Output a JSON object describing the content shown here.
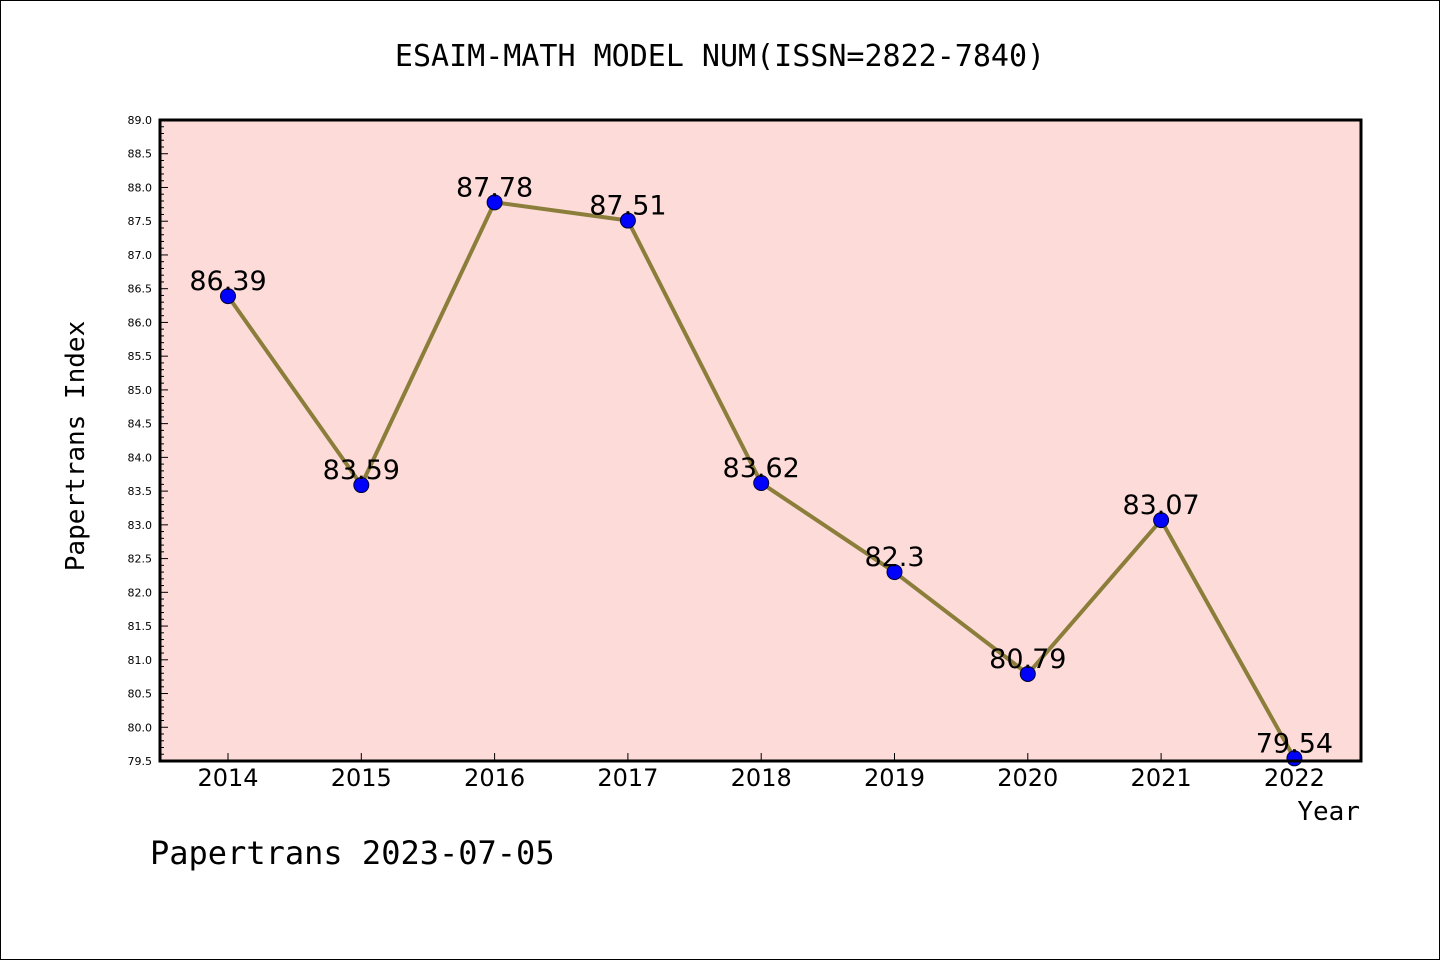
{
  "chart_data": {
    "type": "line",
    "title": "ESAIM-MATH MODEL NUM(ISSN=2822-7840)",
    "xlabel": "Year",
    "ylabel": "Papertrans Index",
    "footer": "Papertrans 2023-07-05",
    "categories": [
      "2014",
      "2015",
      "2016",
      "2017",
      "2018",
      "2019",
      "2020",
      "2021",
      "2022"
    ],
    "values": [
      86.39,
      83.59,
      87.78,
      87.51,
      83.62,
      82.3,
      80.79,
      83.07,
      79.54
    ],
    "data_labels": [
      "86.39",
      "83.59",
      "87.78",
      "87.51",
      "83.62",
      "82.3",
      "80.79",
      "83.07",
      "79.54"
    ],
    "ylim": [
      79.5,
      89.0
    ],
    "ytick_step": 0.5,
    "grid": false,
    "colors": {
      "plot_background": "#fddbd8",
      "line": "#8b7d3a",
      "marker": "#0000ff"
    }
  }
}
